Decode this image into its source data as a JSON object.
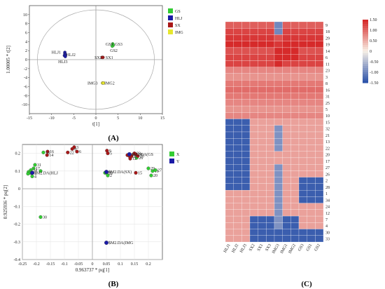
{
  "chart_data": [
    {
      "panel": "(A)",
      "type": "scatter",
      "xlabel": "t[1]",
      "ylabel": "1.00005 * t[2]",
      "xlim": [
        -15,
        15
      ],
      "ylim": [
        -12,
        12
      ],
      "xticks": [
        "-15",
        "-10",
        "-5",
        "0",
        "5",
        "10",
        "15"
      ],
      "yticks": [
        "-10",
        "-8",
        "-6",
        "-4",
        "-2",
        "0",
        "2",
        "4",
        "6",
        "8",
        "10"
      ],
      "legend": [
        {
          "name": "GS",
          "color": "#33cc33"
        },
        {
          "name": "HLJ",
          "color": "#1a1aa6"
        },
        {
          "name": "SX",
          "color": "#a81818"
        },
        {
          "name": "IMG",
          "color": "#e6e62e"
        }
      ],
      "points": [
        {
          "x": 3.8,
          "y": 3.5,
          "group": "GS"
        },
        {
          "x": 3.9,
          "y": 3.2,
          "group": "GS"
        },
        {
          "x": 3.7,
          "y": 3.0,
          "group": "GS"
        },
        {
          "x": -7.0,
          "y": 1.6,
          "group": "HLJ"
        },
        {
          "x": -7.0,
          "y": 1.3,
          "group": "HLJ"
        },
        {
          "x": -6.9,
          "y": 1.1,
          "group": "HLJ"
        },
        {
          "x": -7.1,
          "y": 0.9,
          "group": "HLJ"
        },
        {
          "x": -6.9,
          "y": 0.7,
          "group": "HLJ"
        },
        {
          "x": 1.6,
          "y": 0.5,
          "group": "SX"
        },
        {
          "x": 1.4,
          "y": 0.5,
          "group": "SX"
        },
        {
          "x": 1.5,
          "y": -5.2,
          "group": "IMG"
        },
        {
          "x": 1.7,
          "y": -5.2,
          "group": "IMG"
        }
      ],
      "annotations": [
        {
          "text": "GS1",
          "x": 2.2,
          "y": 3.4,
          "color": "#222222"
        },
        {
          "text": "GS3",
          "x": 4.3,
          "y": 3.4,
          "color": "#222222"
        },
        {
          "text": "GS2",
          "x": 3.2,
          "y": 2.0,
          "color": "#222222"
        },
        {
          "text": "HLJ1",
          "x": -10.0,
          "y": 1.6,
          "color": "#c81818"
        },
        {
          "text": "HLJ2",
          "x": -6.7,
          "y": 1.1,
          "color": "#c81818"
        },
        {
          "text": "HLJ3",
          "x": -8.5,
          "y": -0.5,
          "color": "#c81818"
        },
        {
          "text": "SX2",
          "x": -0.3,
          "y": 0.5,
          "color": "#222222"
        },
        {
          "text": "SX1",
          "x": 2.2,
          "y": 0.5,
          "color": "#222222"
        },
        {
          "text": "IMG3",
          "x": -1.9,
          "y": -5.2,
          "color": "#222222"
        },
        {
          "text": "IMG2",
          "x": 1.9,
          "y": -5.2,
          "color": "#222222"
        }
      ]
    },
    {
      "panel": "(B)",
      "type": "scatter",
      "xlabel": "0.963737 * pq[1]",
      "ylabel": "0.925936 * pq[2]",
      "xlim": [
        -0.25,
        0.25
      ],
      "ylim": [
        -0.4,
        0.25
      ],
      "xticks": [
        "-0.25",
        "-0.2",
        "-0.15",
        "-0.1",
        "-0.05",
        "0",
        "0.05",
        "0.1",
        "0.15",
        "0.2"
      ],
      "yticks": [
        "-0.4",
        "-0.3",
        "-0.2",
        "-0.1",
        "0",
        "0.1",
        "0.2"
      ],
      "legend": [
        {
          "name": "X",
          "color": "#33cc33"
        },
        {
          "name": "Y",
          "color": "#1a1aa6"
        }
      ],
      "points": [
        {
          "x": -0.065,
          "y": 0.235,
          "label": "3",
          "group": "X-red"
        },
        {
          "x": -0.072,
          "y": 0.225,
          "label": "8",
          "group": "X-red"
        },
        {
          "x": -0.055,
          "y": 0.21,
          "label": "6",
          "group": "X-red"
        },
        {
          "x": -0.088,
          "y": 0.205,
          "label": "22",
          "group": "X-red"
        },
        {
          "x": -0.16,
          "y": 0.21,
          "label": "16",
          "group": "X-red"
        },
        {
          "x": -0.175,
          "y": 0.205,
          "label": "18",
          "group": "X-green"
        },
        {
          "x": -0.162,
          "y": 0.19,
          "label": "14",
          "group": "X-red"
        },
        {
          "x": 0.052,
          "y": 0.215,
          "label": "9",
          "group": "X-red"
        },
        {
          "x": 0.055,
          "y": 0.2,
          "label": "5",
          "group": "X-red"
        },
        {
          "x": 0.125,
          "y": 0.19,
          "label": "19",
          "group": "X-red"
        },
        {
          "x": 0.132,
          "y": 0.185,
          "label": "21",
          "group": "X-red"
        },
        {
          "x": 0.14,
          "y": 0.185,
          "label": "33",
          "group": "X-red"
        },
        {
          "x": 0.15,
          "y": 0.2,
          "label": "23",
          "group": "X-red"
        },
        {
          "x": 0.155,
          "y": 0.195,
          "label": "24",
          "group": "X-red"
        },
        {
          "x": 0.158,
          "y": 0.175,
          "label": "26",
          "group": "X-green"
        },
        {
          "x": 0.162,
          "y": 0.185,
          "label": "10",
          "group": "X-red"
        },
        {
          "x": 0.135,
          "y": 0.17,
          "label": "12",
          "group": "X-red"
        },
        {
          "x": 0.2,
          "y": 0.115,
          "label": "29",
          "group": "X-green"
        },
        {
          "x": 0.215,
          "y": 0.1,
          "label": "11",
          "group": "X-green"
        },
        {
          "x": 0.225,
          "y": 0.105,
          "label": "27",
          "group": "X-green"
        },
        {
          "x": 0.21,
          "y": 0.075,
          "label": "20",
          "group": "X-green"
        },
        {
          "x": 0.155,
          "y": 0.09,
          "label": "15",
          "group": "X-red"
        },
        {
          "x": -0.205,
          "y": 0.135,
          "label": "31",
          "group": "X-green"
        },
        {
          "x": -0.21,
          "y": 0.115,
          "label": "17",
          "group": "X-green"
        },
        {
          "x": -0.22,
          "y": 0.105,
          "label": "34",
          "group": "X-green"
        },
        {
          "x": -0.228,
          "y": 0.095,
          "label": "1",
          "group": "X-green"
        },
        {
          "x": -0.222,
          "y": 0.09,
          "label": "32",
          "group": "X-green"
        },
        {
          "x": -0.185,
          "y": 0.1,
          "label": "",
          "group": "X-green"
        },
        {
          "x": -0.23,
          "y": 0.085,
          "label": "7",
          "group": "X-green"
        },
        {
          "x": -0.215,
          "y": 0.07,
          "label": "4",
          "group": "X-green"
        },
        {
          "x": 0.045,
          "y": 0.09,
          "label": "25",
          "group": "X-green"
        },
        {
          "x": 0.05,
          "y": 0.09,
          "label": "28",
          "group": "X-green"
        },
        {
          "x": 0.055,
          "y": 0.075,
          "label": "2",
          "group": "X-green"
        },
        {
          "x": -0.185,
          "y": -0.16,
          "label": "30",
          "group": "X-green"
        },
        {
          "x": -0.215,
          "y": 0.09,
          "label": "$M2.DA(HLJ",
          "group": "Y"
        },
        {
          "x": 0.132,
          "y": 0.195,
          "label": "$M2.DA(GS",
          "group": "Y"
        },
        {
          "x": 0.05,
          "y": 0.095,
          "label": "$M2.DA(SX)",
          "group": "Y"
        },
        {
          "x": 0.05,
          "y": -0.305,
          "label": "$M2.DA(IMG",
          "group": "Y"
        }
      ]
    },
    {
      "panel": "(C)",
      "type": "heatmap",
      "columns": [
        "HLJ1",
        "HLJ2",
        "HLJ3",
        "SX2",
        "SX1",
        "SX3",
        "IMG3",
        "IMG1",
        "IMG2",
        "GS3",
        "GS1",
        "GS2"
      ],
      "rows": [
        "9",
        "18",
        "29",
        "19",
        "14",
        "6",
        "11",
        "23",
        "3",
        "8",
        "16",
        "31",
        "25",
        "5",
        "10",
        "15",
        "32",
        "21",
        "13",
        "22",
        "20",
        "17",
        "27",
        "26",
        "2",
        "28",
        "1",
        "34",
        "24",
        "12",
        "7",
        "4",
        "30",
        "33"
      ],
      "scale": {
        "min": -1.5,
        "max": 1.5,
        "ticks": [
          "1.50",
          "1.00",
          "0.50",
          "0",
          "-0.50",
          "-1.00",
          "-1.50"
        ]
      },
      "values": [
        [
          1.1,
          1.1,
          1.1,
          1.1,
          1.1,
          1.1,
          -1.0,
          1.1,
          1.1,
          1.1,
          1.1,
          1.1
        ],
        [
          1.3,
          1.3,
          1.3,
          1.3,
          1.3,
          1.3,
          -1.0,
          1.3,
          1.3,
          1.3,
          1.3,
          1.3
        ],
        [
          1.4,
          1.4,
          1.4,
          1.4,
          1.4,
          1.4,
          1.2,
          1.4,
          1.4,
          1.4,
          1.4,
          1.4
        ],
        [
          1.5,
          1.5,
          1.5,
          1.5,
          1.5,
          1.5,
          1.4,
          1.5,
          1.5,
          1.5,
          1.5,
          1.5
        ],
        [
          1.2,
          1.2,
          1.2,
          1.2,
          1.2,
          1.2,
          1.5,
          1.5,
          1.5,
          1.2,
          1.2,
          1.2
        ],
        [
          1.3,
          1.3,
          1.3,
          1.3,
          1.3,
          1.3,
          1.5,
          1.5,
          1.5,
          1.3,
          1.3,
          1.3
        ],
        [
          1.3,
          1.3,
          1.3,
          1.3,
          1.3,
          1.3,
          1.5,
          1.3,
          1.3,
          1.3,
          1.3,
          1.3
        ],
        [
          0.8,
          0.8,
          0.8,
          0.8,
          0.8,
          0.8,
          0.8,
          0.8,
          0.8,
          0.8,
          0.8,
          0.8
        ],
        [
          0.7,
          0.7,
          0.7,
          0.7,
          0.7,
          0.7,
          0.7,
          0.7,
          0.7,
          0.7,
          0.7,
          0.7
        ],
        [
          0.9,
          0.9,
          0.9,
          0.9,
          0.9,
          0.9,
          0.9,
          0.9,
          0.9,
          0.9,
          0.9,
          0.9
        ],
        [
          1.0,
          1.0,
          1.0,
          1.0,
          1.0,
          1.0,
          1.0,
          1.0,
          1.0,
          1.0,
          1.0,
          1.0
        ],
        [
          0.9,
          0.9,
          0.9,
          0.9,
          0.9,
          0.9,
          0.9,
          0.9,
          0.9,
          0.9,
          0.9,
          0.9
        ],
        [
          0.8,
          0.8,
          0.8,
          0.8,
          0.8,
          0.8,
          0.8,
          0.8,
          0.8,
          0.8,
          0.8,
          0.8
        ],
        [
          0.7,
          0.7,
          0.7,
          0.7,
          0.7,
          0.7,
          0.7,
          0.7,
          0.7,
          0.7,
          0.7,
          0.7
        ],
        [
          0.8,
          0.8,
          0.8,
          0.8,
          0.8,
          0.8,
          0.8,
          0.8,
          0.8,
          0.8,
          0.8,
          0.8
        ],
        [
          -1.4,
          -1.4,
          -1.4,
          0.6,
          0.6,
          0.6,
          0.6,
          0.6,
          0.6,
          0.6,
          0.6,
          0.6
        ],
        [
          -1.4,
          -1.4,
          -1.4,
          0.6,
          0.6,
          0.6,
          -0.9,
          0.6,
          0.6,
          0.6,
          0.6,
          0.6
        ],
        [
          -1.4,
          -1.4,
          -1.4,
          0.6,
          0.6,
          0.6,
          -0.9,
          0.6,
          0.6,
          0.6,
          0.6,
          0.6
        ],
        [
          -1.4,
          -1.4,
          -1.4,
          0.6,
          0.6,
          0.6,
          -0.9,
          0.6,
          0.6,
          0.6,
          0.6,
          0.6
        ],
        [
          -1.4,
          -1.4,
          -1.4,
          0.6,
          0.6,
          0.6,
          -0.9,
          0.6,
          0.6,
          0.6,
          0.6,
          0.6
        ],
        [
          -1.4,
          -1.4,
          -1.4,
          0.6,
          0.6,
          0.6,
          0.6,
          0.6,
          0.6,
          0.6,
          0.6,
          0.6
        ],
        [
          -1.4,
          -1.4,
          -1.4,
          0.6,
          0.6,
          0.6,
          0.6,
          0.6,
          0.6,
          0.6,
          0.6,
          0.6
        ],
        [
          -1.4,
          -1.4,
          -1.4,
          0.6,
          0.6,
          0.6,
          -0.9,
          0.6,
          0.6,
          0.6,
          0.6,
          0.6
        ],
        [
          -1.4,
          -1.4,
          -1.4,
          0.6,
          0.6,
          0.6,
          -0.9,
          0.6,
          0.6,
          0.6,
          0.6,
          0.6
        ],
        [
          -1.4,
          -1.4,
          -1.4,
          0.6,
          0.6,
          0.6,
          -0.9,
          0.6,
          0.6,
          -1.4,
          -1.4,
          -1.4
        ],
        [
          -1.4,
          -1.4,
          -1.4,
          0.6,
          0.6,
          0.6,
          -0.9,
          0.6,
          0.6,
          -1.4,
          -1.4,
          -1.4
        ],
        [
          0.6,
          0.6,
          0.6,
          0.6,
          0.6,
          0.6,
          -0.9,
          0.6,
          0.6,
          -1.4,
          -1.4,
          -1.4
        ],
        [
          0.6,
          0.6,
          0.6,
          0.6,
          0.6,
          0.6,
          -0.9,
          0.6,
          0.6,
          -1.4,
          -1.4,
          -1.4
        ],
        [
          0.6,
          0.6,
          0.6,
          0.6,
          0.6,
          0.6,
          -0.9,
          0.6,
          0.6,
          0.6,
          0.6,
          0.6
        ],
        [
          0.6,
          0.6,
          0.6,
          0.6,
          0.6,
          0.6,
          -0.9,
          0.6,
          0.6,
          0.6,
          0.6,
          0.6
        ],
        [
          0.6,
          0.6,
          0.6,
          -1.4,
          -1.4,
          -1.4,
          -0.9,
          -1.4,
          -1.4,
          0.6,
          0.6,
          0.6
        ],
        [
          0.6,
          0.6,
          0.6,
          -1.4,
          -1.4,
          -1.4,
          -0.9,
          -1.4,
          -1.4,
          0.6,
          0.6,
          0.6
        ],
        [
          0.6,
          0.6,
          0.6,
          -1.4,
          -1.4,
          -1.4,
          -1.4,
          -1.4,
          -1.4,
          -1.4,
          -1.4,
          -1.4
        ],
        [
          0.6,
          0.6,
          0.6,
          -1.4,
          -1.4,
          -1.4,
          -1.4,
          -1.4,
          -1.4,
          -1.4,
          -1.4,
          -1.4
        ]
      ]
    }
  ]
}
